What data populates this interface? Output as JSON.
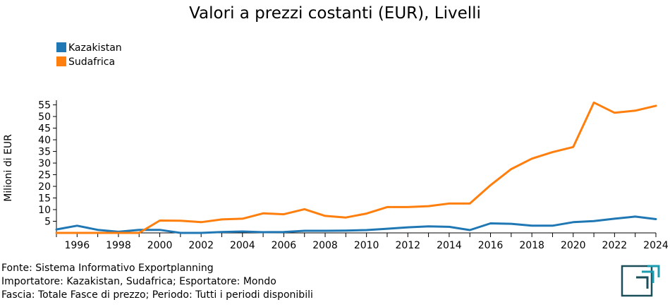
{
  "chart_data": {
    "type": "line",
    "title": "Valori a prezzi costanti (EUR), Livelli",
    "ylabel": "Milioni di EUR",
    "xlabel": "",
    "ylim": [
      0,
      57
    ],
    "xlim": [
      1995,
      2024
    ],
    "yticks": [
      "5",
      "10",
      "15",
      "20",
      "25",
      "30",
      "35",
      "40",
      "45",
      "50",
      "55"
    ],
    "xticks": [
      "1996",
      "1998",
      "2000",
      "2002",
      "2004",
      "2006",
      "2008",
      "2010",
      "2012",
      "2014",
      "2016",
      "2018",
      "2020",
      "2022",
      "2024"
    ],
    "x": [
      1995,
      1996,
      1997,
      1998,
      1999,
      2000,
      2001,
      2002,
      2003,
      2004,
      2005,
      2006,
      2007,
      2008,
      2009,
      2010,
      2011,
      2012,
      2013,
      2014,
      2015,
      2016,
      2017,
      2018,
      2019,
      2020,
      2021,
      2022,
      2023,
      2024
    ],
    "series": [
      {
        "name": "Kazakistan",
        "color": "#1f77b4",
        "values": [
          1.5,
          3.1,
          1.3,
          0.5,
          1.3,
          1.3,
          0.0,
          0.0,
          0.4,
          0.6,
          0.3,
          0.4,
          0.9,
          0.9,
          1.0,
          1.2,
          1.8,
          2.4,
          2.8,
          2.6,
          1.2,
          4.1,
          3.9,
          3.1,
          3.1,
          4.6,
          5.1,
          6.1,
          7.0,
          5.9
        ]
      },
      {
        "name": "Sudafrica",
        "color": "#ff7f0e",
        "values": [
          0.0,
          0.0,
          0.0,
          0.0,
          0.0,
          5.3,
          5.2,
          4.6,
          5.8,
          6.1,
          8.4,
          8.0,
          10.2,
          7.3,
          6.6,
          8.3,
          11.1,
          11.1,
          11.5,
          12.6,
          12.6,
          20.5,
          27.4,
          31.9,
          34.7,
          36.9,
          56.0,
          51.6,
          52.5,
          54.6
        ]
      }
    ],
    "grid": false,
    "legend_position": "top-left"
  },
  "footer": [
    "Fonte: Sistema Informativo Exportplanning",
    "Importatore: Kazakistan, Sudafrica; Esportatore: Mondo",
    "Fascia: Totale Fasce di prezzo; Periodo: Tutti i periodi disponibili"
  ],
  "logo": {
    "primary_color": "#1a4f5a",
    "accent_color": "#1a9bb0",
    "icon": "exportplanning-logo-icon"
  }
}
